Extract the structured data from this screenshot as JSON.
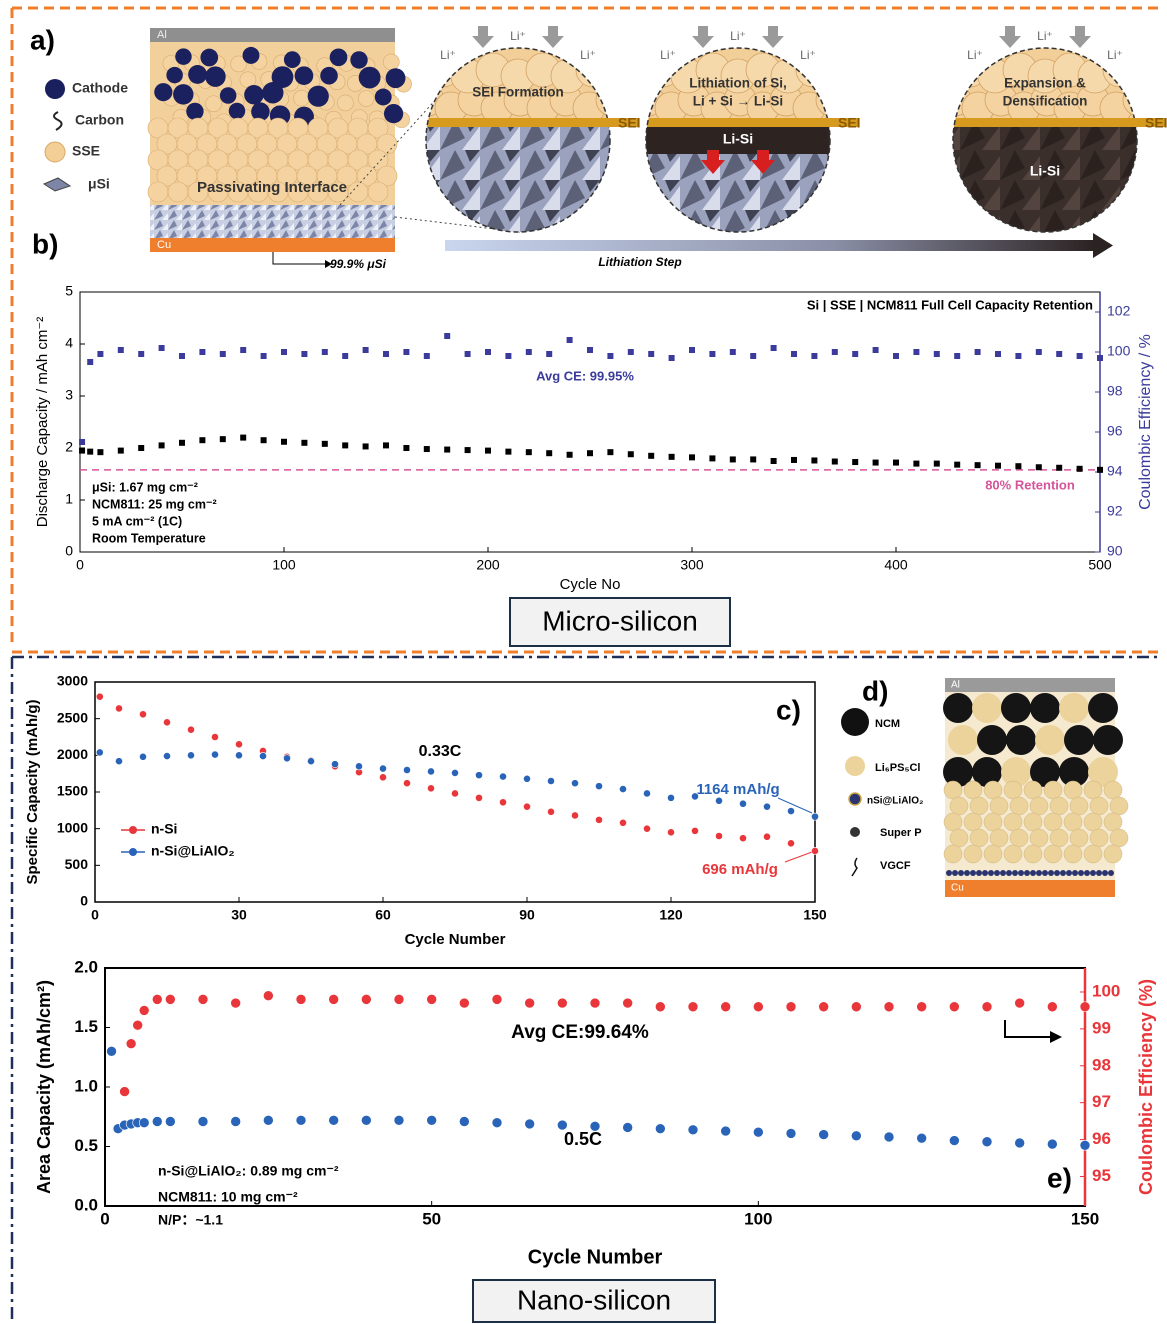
{
  "sections": {
    "micro": "Micro-silicon",
    "nano": "Nano-silicon"
  },
  "panel_a": {
    "label": "a)",
    "legend": [
      "Cathode",
      "Carbon",
      "SSE",
      "μSi"
    ],
    "stack": {
      "top": "Al",
      "middle": "Passivating Interface",
      "bottom": "Cu",
      "note": "99.9% μSi"
    },
    "ion": "Li⁺",
    "steps": [
      {
        "title": [
          "SEI Formation"
        ],
        "layer": "SEI"
      },
      {
        "title": [
          "Lithiation of Si,",
          "Li + Si → Li-Si"
        ],
        "layer": "SEI",
        "core": "Li-Si"
      },
      {
        "title": [
          "Expansion &",
          "Densification"
        ],
        "layer": "SEI",
        "core": "Li-Si"
      }
    ],
    "arrow": "Lithiation Step"
  },
  "panel_d": {
    "label": "d)",
    "legend": [
      "NCM",
      "Li₆PS₅Cl",
      "nSi@LiAlO₂",
      "Super P",
      "VGCF"
    ],
    "top": "Al",
    "bottom": "Cu"
  },
  "chart_data": [
    {
      "type": "scatter",
      "panel_label": "b)",
      "xlabel": "Cycle No",
      "ylabel": "Discharge Capacity / mAh cm⁻²",
      "y2label": "Coulombic Efficiency / %",
      "y2color": "#3b3b9c",
      "x": [
        1,
        5,
        10,
        20,
        30,
        40,
        50,
        60,
        70,
        80,
        90,
        100,
        110,
        120,
        130,
        140,
        150,
        160,
        170,
        180,
        190,
        200,
        210,
        220,
        230,
        240,
        250,
        260,
        270,
        280,
        290,
        300,
        310,
        320,
        330,
        340,
        350,
        360,
        370,
        380,
        390,
        400,
        410,
        420,
        430,
        440,
        450,
        460,
        470,
        480,
        490,
        500
      ],
      "xlim": [
        0,
        500
      ],
      "xticks": [
        0,
        100,
        200,
        300,
        400,
        500
      ],
      "ylim": [
        0,
        5
      ],
      "yticks": [
        0,
        1,
        2,
        3,
        4,
        5
      ],
      "y2lim": [
        90,
        103
      ],
      "y2ticks": [
        90,
        92,
        94,
        96,
        98,
        100,
        102
      ],
      "series": [
        {
          "color": "#000000",
          "marker": "square",
          "values": [
            1.95,
            1.93,
            1.92,
            1.95,
            2.0,
            2.05,
            2.1,
            2.15,
            2.17,
            2.2,
            2.15,
            2.12,
            2.1,
            2.08,
            2.05,
            2.03,
            2.05,
            2.0,
            1.98,
            1.97,
            1.96,
            1.95,
            1.93,
            1.92,
            1.9,
            1.87,
            1.9,
            1.92,
            1.88,
            1.85,
            1.83,
            1.82,
            1.8,
            1.78,
            1.78,
            1.75,
            1.77,
            1.76,
            1.74,
            1.73,
            1.72,
            1.72,
            1.7,
            1.7,
            1.68,
            1.67,
            1.66,
            1.65,
            1.63,
            1.62,
            1.6,
            1.58
          ]
        },
        {
          "color": "#3b3b9c",
          "marker": "square",
          "axis": "y2",
          "values": [
            95.5,
            99.5,
            99.9,
            100.1,
            99.9,
            100.2,
            99.8,
            100.0,
            99.9,
            100.1,
            99.8,
            100.0,
            99.9,
            100.0,
            99.8,
            100.1,
            99.9,
            100.0,
            99.8,
            100.8,
            99.9,
            100.0,
            99.8,
            100.0,
            99.9,
            100.6,
            100.1,
            99.8,
            100.0,
            99.9,
            99.7,
            100.1,
            99.9,
            100.0,
            99.8,
            100.2,
            99.9,
            99.8,
            100.0,
            99.9,
            100.1,
            99.8,
            100.0,
            99.9,
            99.8,
            100.0,
            99.9,
            99.8,
            100.0,
            99.9,
            99.8,
            99.7
          ]
        }
      ],
      "reference_line": {
        "value": 1.58,
        "label": "80% Retention",
        "color": "#d6549a"
      },
      "annotations": [
        "Si | SSE | NCM811 Full Cell Capacity Retention",
        "Avg CE: 99.95%",
        "μSi: 1.67 mg cm⁻²",
        "NCM811: 25 mg cm⁻²",
        "5 mA cm⁻² (1C)",
        "Room Temperature"
      ]
    },
    {
      "type": "scatter",
      "panel_label": "c)",
      "xlabel": "Cycle Number",
      "ylabel": "Specific Capacity (mAh/g)",
      "x": [
        1,
        5,
        10,
        15,
        20,
        25,
        30,
        35,
        40,
        45,
        50,
        55,
        60,
        65,
        70,
        75,
        80,
        85,
        90,
        95,
        100,
        105,
        110,
        115,
        120,
        125,
        130,
        135,
        140,
        145,
        150
      ],
      "xlim": [
        0,
        150
      ],
      "xticks": [
        0,
        30,
        60,
        90,
        120,
        150
      ],
      "ylim": [
        0,
        3000
      ],
      "yticks": [
        0,
        500,
        1000,
        1500,
        2000,
        2500,
        3000
      ],
      "legend": "left",
      "series": [
        {
          "name": "n-Si",
          "color": "#e8363a",
          "marker": "circle",
          "values": [
            2800,
            2640,
            2560,
            2450,
            2350,
            2250,
            2150,
            2060,
            1980,
            1930,
            1850,
            1770,
            1700,
            1620,
            1550,
            1480,
            1420,
            1360,
            1300,
            1230,
            1180,
            1120,
            1080,
            1000,
            950,
            970,
            900,
            870,
            890,
            800,
            696
          ]
        },
        {
          "name": "n-Si@LiAlO₂",
          "color": "#2a64b8",
          "marker": "circle",
          "values": [
            2040,
            1920,
            1980,
            1990,
            2000,
            2010,
            2000,
            1990,
            1960,
            1920,
            1880,
            1850,
            1820,
            1800,
            1780,
            1760,
            1730,
            1710,
            1680,
            1650,
            1620,
            1580,
            1540,
            1480,
            1420,
            1440,
            1380,
            1340,
            1300,
            1240,
            1164
          ]
        }
      ],
      "annotations": [
        "0.33C",
        "1164 mAh/g",
        "696 mAh/g"
      ]
    },
    {
      "type": "scatter",
      "panel_label": "e)",
      "xlabel": "Cycle Number",
      "ylabel": "Area Capacity (mAh/cm²)",
      "y2label": "Coulombic Efficiency (%)",
      "y2color": "#e8363a",
      "x": [
        1,
        2,
        3,
        4,
        5,
        6,
        8,
        10,
        15,
        20,
        25,
        30,
        35,
        40,
        45,
        50,
        55,
        60,
        65,
        70,
        75,
        80,
        85,
        90,
        95,
        100,
        105,
        110,
        115,
        120,
        125,
        130,
        135,
        140,
        145,
        150
      ],
      "xlim": [
        0,
        150
      ],
      "xticks": [
        0,
        50,
        100,
        150
      ],
      "ylim": [
        0,
        2
      ],
      "yticks": [
        {
          "value": 0,
          "label": "0.0"
        },
        {
          "value": 0.5,
          "label": "0.5"
        },
        {
          "value": 1,
          "label": "1.0"
        },
        {
          "value": 1.5,
          "label": "1.5"
        },
        {
          "value": 2,
          "label": "2.0"
        }
      ],
      "y2lim": [
        94.2,
        100.65
      ],
      "y2ticks": [
        95,
        96,
        97,
        98,
        99,
        100
      ],
      "series": [
        {
          "color": "#2a64b8",
          "marker": "circle",
          "values": [
            1.3,
            0.65,
            0.68,
            0.69,
            0.7,
            0.7,
            0.71,
            0.71,
            0.71,
            0.71,
            0.72,
            0.72,
            0.72,
            0.72,
            0.72,
            0.72,
            0.71,
            0.7,
            0.69,
            0.68,
            0.67,
            0.66,
            0.65,
            0.64,
            0.63,
            0.62,
            0.61,
            0.6,
            0.59,
            0.58,
            0.57,
            0.55,
            0.54,
            0.53,
            0.52,
            0.51
          ]
        },
        {
          "color": "#e8363a",
          "marker": "circle",
          "axis": "y2",
          "values": [
            null,
            null,
            97.3,
            98.6,
            99.1,
            99.5,
            99.8,
            99.8,
            99.8,
            99.7,
            99.9,
            99.8,
            99.8,
            99.8,
            99.8,
            99.8,
            99.7,
            99.8,
            99.7,
            99.7,
            99.7,
            99.7,
            99.6,
            99.6,
            99.6,
            99.6,
            99.6,
            99.6,
            99.6,
            99.6,
            99.6,
            99.6,
            99.6,
            99.7,
            99.6,
            99.6
          ]
        }
      ],
      "annotations": [
        "Avg CE:99.64%",
        "0.5C",
        "n-Si@LiAlO₂: 0.89 mg cm⁻²",
        "NCM811: 10 mg cm⁻²",
        "N/P：~1.1"
      ]
    }
  ]
}
